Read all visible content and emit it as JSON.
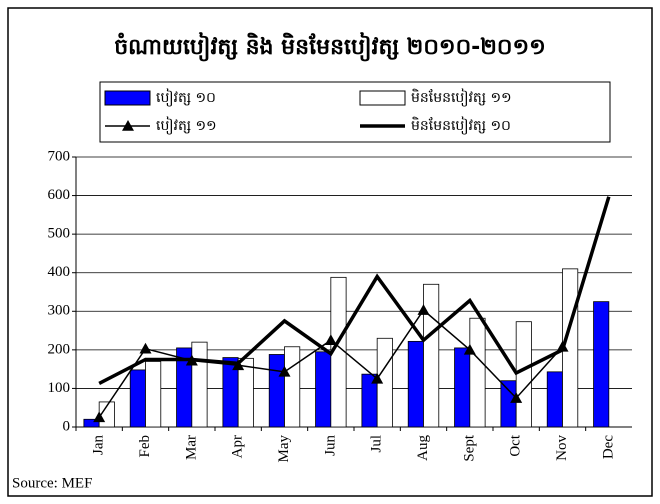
{
  "chart_data": {
    "type": "bar",
    "title": "ចំណាយបៀវត្ស និង មិនមែនបៀវត្ស ២០១០-២០១១",
    "categories": [
      "Jan",
      "Feb",
      "Mar",
      "Apr",
      "May",
      "Jun",
      "Jul",
      "Aug",
      "Sept",
      "Oct",
      "Nov",
      "Dec"
    ],
    "series": [
      {
        "name": "បៀវត្ស ១០",
        "type": "bar",
        "color": "#0000ff",
        "values": [
          20,
          148,
          205,
          180,
          188,
          195,
          137,
          222,
          205,
          120,
          143,
          325
        ]
      },
      {
        "name": "មិនមែនបៀវត្ស ១១",
        "type": "bar",
        "color": "#ffffff",
        "values": [
          65,
          170,
          220,
          178,
          208,
          388,
          230,
          370,
          282,
          273,
          410,
          null
        ]
      },
      {
        "name": "បៀវត្ស ១១",
        "type": "line",
        "marker": "triangle",
        "color": "#000000",
        "values": [
          25,
          203,
          172,
          160,
          143,
          225,
          125,
          303,
          200,
          75,
          208,
          null
        ]
      },
      {
        "name": "មិនមែនបៀវត្ស ១០",
        "type": "line",
        "color": "#000000",
        "values": [
          113,
          175,
          175,
          165,
          275,
          190,
          390,
          225,
          328,
          140,
          200,
          597
        ]
      }
    ],
    "ylim": [
      0,
      700
    ],
    "yticks": [
      0,
      100,
      200,
      300,
      400,
      500,
      600,
      700
    ],
    "grid": true,
    "source": "Source: MEF"
  }
}
